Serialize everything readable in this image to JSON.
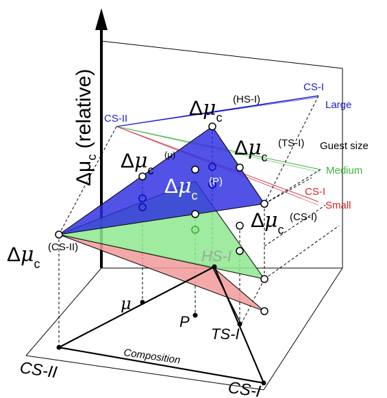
{
  "axis": {
    "ylabel_main": "Δμ",
    "ylabel_sub": "c",
    "ylabel_rest": " (relative)"
  },
  "delta": {
    "symbol": "Δ",
    "mu": "μ",
    "sub": "c"
  },
  "labels": {
    "hs1_sup": "(HS-I)",
    "ts1_sup": "(TS-I)",
    "cs1_sup": "(CS-I)",
    "cs2_sup": "(CS-II)",
    "mu_sup": "(μ)",
    "p_sup": "(P)"
  },
  "lines": {
    "cs2": "CS-II",
    "cs1_large": "CS-I",
    "large": "Large",
    "guest_size": "Guest size",
    "medium": "Medium",
    "cs1_small": "CS-I",
    "small": "Small"
  },
  "composition": {
    "title": "Composition",
    "hs1": "HS-I",
    "mu": "μ",
    "p": "P",
    "ts1": "TS-I",
    "cs2": "CS-II",
    "cs1": "CS-I"
  },
  "colors": {
    "blue": "#2a2ad6",
    "green": "#3cb43c",
    "red": "#e63a3a",
    "blue_fill": "#3a3ae0",
    "green_fill": "#90e890",
    "red_fill": "#f0a0a0"
  }
}
